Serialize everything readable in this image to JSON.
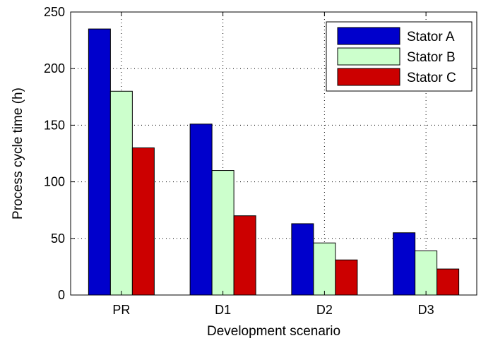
{
  "chart_data": {
    "type": "bar",
    "title": "",
    "xlabel": "Development scenario",
    "ylabel": "Process cycle time (h)",
    "categories": [
      "PR",
      "D1",
      "D2",
      "D3"
    ],
    "ylim": [
      0,
      250
    ],
    "yticks": [
      0,
      50,
      100,
      150,
      200,
      250
    ],
    "grid": true,
    "legend_position": "top-right",
    "series": [
      {
        "name": "Stator A",
        "color": "#0000cc",
        "values": [
          235,
          151,
          63,
          55
        ]
      },
      {
        "name": "Stator B",
        "color": "#ccffcc",
        "values": [
          180,
          110,
          46,
          39
        ]
      },
      {
        "name": "Stator C",
        "color": "#cc0000",
        "values": [
          130,
          70,
          31,
          23
        ]
      }
    ]
  }
}
